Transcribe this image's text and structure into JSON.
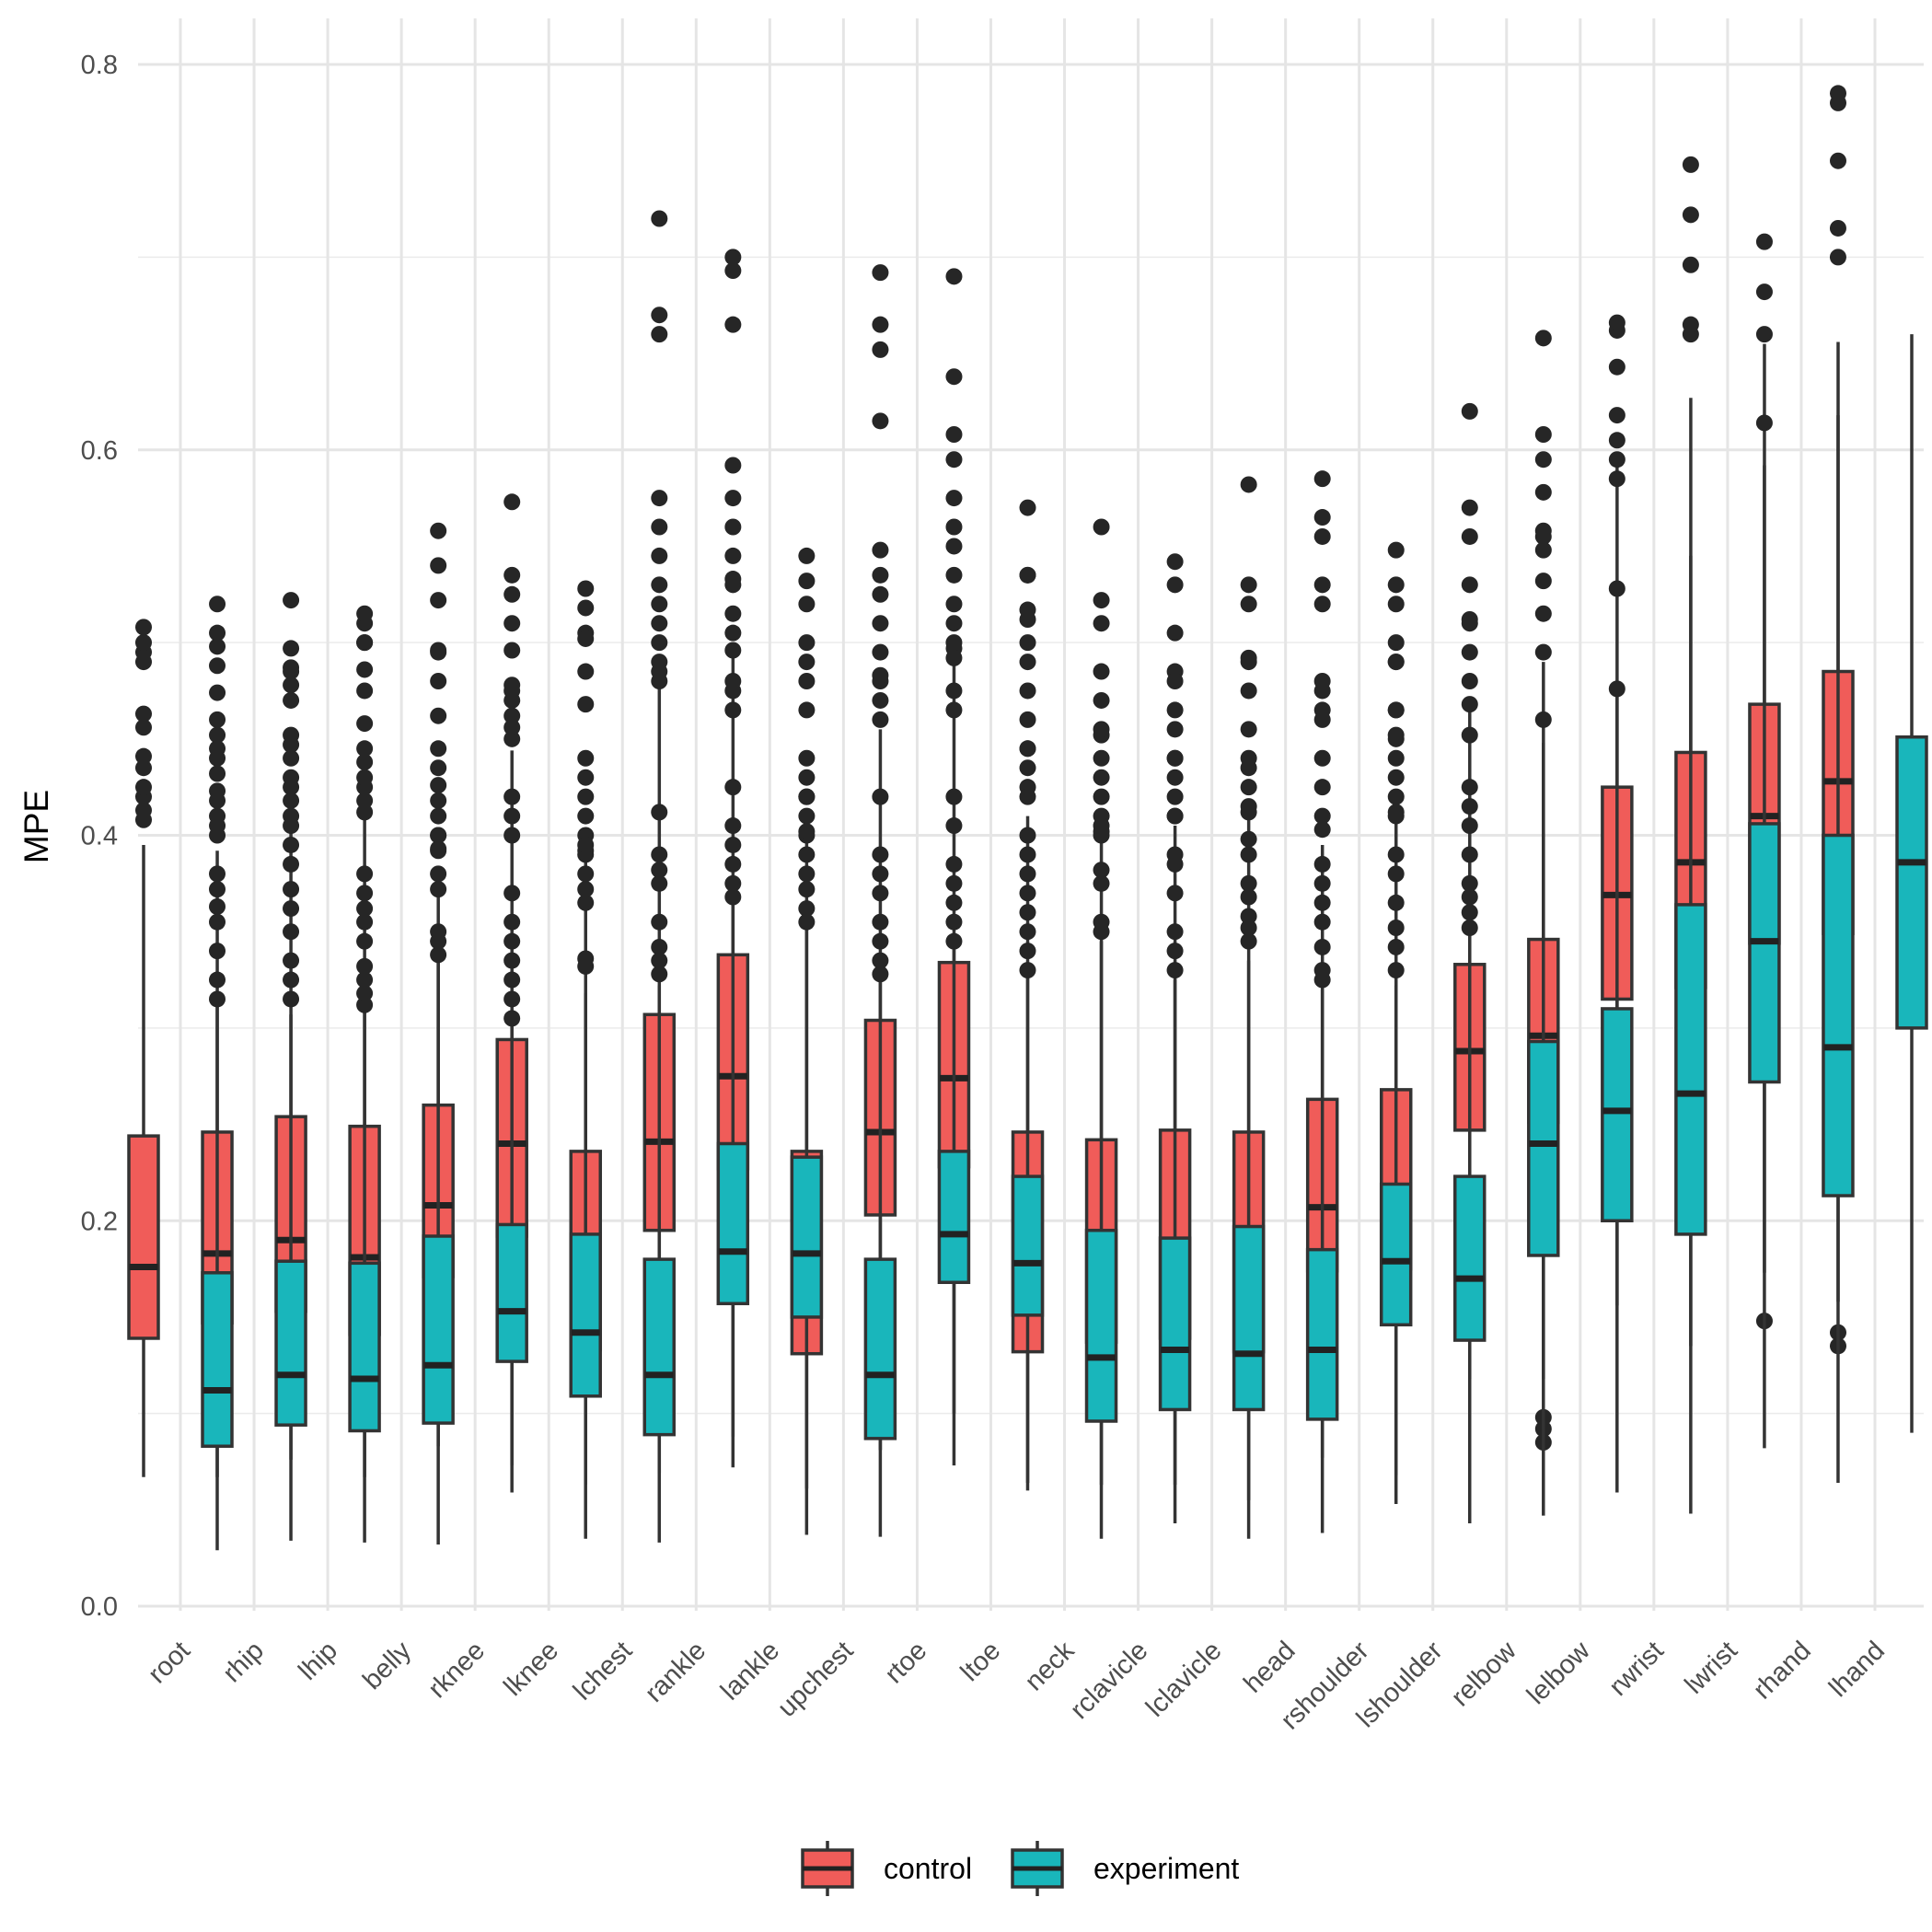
{
  "chart_data": {
    "type": "boxplot",
    "ylabel": "MPE",
    "xlabel": "",
    "ylim": [
      0,
      0.8
    ],
    "yticks": [
      "0.0",
      "0.2",
      "0.4",
      "0.6",
      "0.8"
    ],
    "grid": true,
    "legend_position": "bottom",
    "categories": [
      "root",
      "rhip",
      "lhip",
      "belly",
      "rknee",
      "lknee",
      "lchest",
      "rankle",
      "lankle",
      "upchest",
      "rtoe",
      "ltoe",
      "neck",
      "rclavicle",
      "lclavicle",
      "head",
      "rshoulder",
      "lshoulder",
      "relbow",
      "lelbow",
      "rwrist",
      "lwrist",
      "rhand",
      "lhand"
    ],
    "series": [
      {
        "name": "control",
        "color": "#F8766D",
        "boxes": [
          {
            "min": 0.067,
            "q1": 0.139,
            "median": 0.176,
            "q3": 0.244,
            "max": 0.395,
            "outliers": [
              0.408,
              0.413,
              0.42,
              0.425,
              0.435,
              0.441,
              0.456,
              0.463,
              0.49,
              0.495,
              0.5,
              0.508
            ]
          },
          {
            "min": 0.067,
            "q1": 0.147,
            "median": 0.183,
            "q3": 0.246,
            "max": 0.392,
            "outliers": [
              0.4,
              0.405,
              0.41,
              0.418,
              0.423,
              0.432,
              0.44,
              0.445,
              0.452,
              0.46,
              0.474,
              0.498,
              0.505,
              0.52
            ]
          },
          {
            "min": 0.076,
            "q1": 0.153,
            "median": 0.19,
            "q3": 0.254,
            "max": 0.402,
            "outliers": [
              0.405,
              0.41,
              0.418,
              0.425,
              0.43,
              0.44,
              0.447,
              0.452,
              0.47,
              0.478,
              0.485,
              0.497,
              0.522
            ]
          },
          {
            "min": 0.067,
            "q1": 0.141,
            "median": 0.181,
            "q3": 0.249,
            "max": 0.41,
            "outliers": [
              0.412,
              0.418,
              0.425,
              0.43,
              0.438,
              0.445,
              0.458,
              0.475,
              0.486,
              0.5,
              0.51,
              0.515
            ]
          },
          {
            "min": 0.083,
            "q1": 0.171,
            "median": 0.208,
            "q3": 0.26,
            "max": 0.384,
            "outliers": [
              0.393,
              0.4,
              0.41,
              0.418,
              0.426,
              0.435,
              0.445,
              0.462,
              0.48,
              0.495,
              0.522,
              0.54,
              0.558
            ]
          },
          {
            "min": 0.073,
            "q1": 0.192,
            "median": 0.24,
            "q3": 0.294,
            "max": 0.444,
            "outliers": [
              0.45,
              0.456,
              0.462,
              0.47,
              0.478,
              0.496,
              0.51,
              0.525,
              0.535,
              0.573
            ]
          },
          {
            "min": 0.063,
            "q1": 0.133,
            "median": 0.17,
            "q3": 0.236,
            "max": 0.389,
            "outliers": [
              0.392,
              0.4,
              0.41,
              0.42,
              0.43,
              0.44,
              0.468,
              0.485,
              0.505,
              0.518,
              0.528
            ]
          },
          {
            "min": 0.069,
            "q1": 0.195,
            "median": 0.241,
            "q3": 0.307,
            "max": 0.476,
            "outliers": [
              0.48,
              0.49,
              0.5,
              0.51,
              0.52,
              0.53,
              0.545,
              0.56,
              0.575,
              0.66,
              0.67,
              0.72
            ]
          },
          {
            "min": 0.088,
            "q1": 0.227,
            "median": 0.275,
            "q3": 0.338,
            "max": 0.5,
            "outliers": [
              0.505,
              0.515,
              0.53,
              0.545,
              0.56,
              0.575,
              0.592,
              0.665,
              0.693,
              0.7
            ]
          },
          {
            "min": 0.061,
            "q1": 0.131,
            "median": 0.167,
            "q3": 0.236,
            "max": 0.396,
            "outliers": [
              0.4,
              0.41,
              0.42,
              0.43,
              0.44,
              0.465,
              0.48,
              0.5,
              0.52,
              0.532
            ]
          },
          {
            "min": 0.081,
            "q1": 0.203,
            "median": 0.246,
            "q3": 0.304,
            "max": 0.455,
            "outliers": [
              0.46,
              0.47,
              0.48,
              0.495,
              0.51,
              0.525,
              0.535,
              0.548,
              0.615,
              0.652,
              0.665,
              0.692
            ]
          },
          {
            "min": 0.1,
            "q1": 0.228,
            "median": 0.274,
            "q3": 0.334,
            "max": 0.493,
            "outliers": [
              0.497,
              0.51,
              0.52,
              0.535,
              0.55,
              0.56,
              0.575,
              0.595,
              0.608,
              0.638,
              0.69
            ]
          },
          {
            "min": 0.064,
            "q1": 0.132,
            "median": 0.172,
            "q3": 0.246,
            "max": 0.41,
            "outliers": [
              0.425,
              0.435,
              0.445,
              0.46,
              0.475,
              0.49,
              0.5,
              0.512,
              0.535,
              0.57
            ]
          },
          {
            "min": 0.063,
            "q1": 0.137,
            "median": 0.174,
            "q3": 0.242,
            "max": 0.398,
            "outliers": [
              0.402,
              0.41,
              0.42,
              0.43,
              0.44,
              0.452,
              0.47,
              0.51,
              0.522,
              0.56
            ]
          },
          {
            "min": 0.063,
            "q1": 0.139,
            "median": 0.178,
            "q3": 0.247,
            "max": 0.405,
            "outliers": [
              0.41,
              0.42,
              0.43,
              0.44,
              0.455,
              0.465,
              0.485,
              0.505,
              0.53,
              0.542
            ]
          },
          {
            "min": 0.055,
            "q1": 0.132,
            "median": 0.176,
            "q3": 0.246,
            "max": 0.41,
            "outliers": [
              0.415,
              0.425,
              0.44,
              0.455,
              0.475,
              0.49,
              0.52,
              0.53,
              0.582
            ]
          },
          {
            "min": 0.077,
            "q1": 0.174,
            "median": 0.207,
            "q3": 0.263,
            "max": 0.395,
            "outliers": [
              0.403,
              0.41,
              0.425,
              0.44,
              0.46,
              0.465,
              0.52,
              0.53,
              0.555,
              0.565,
              0.585
            ]
          },
          {
            "min": 0.068,
            "q1": 0.175,
            "median": 0.21,
            "q3": 0.268,
            "max": 0.408,
            "outliers": [
              0.412,
              0.42,
              0.43,
              0.44,
              0.45,
              0.465,
              0.49,
              0.5,
              0.52,
              0.53,
              0.548
            ]
          },
          {
            "min": 0.118,
            "q1": 0.247,
            "median": 0.288,
            "q3": 0.333,
            "max": 0.468,
            "outliers": [
              0.468,
              0.48,
              0.495,
              0.51,
              0.53,
              0.555,
              0.57,
              0.62
            ]
          },
          {
            "min": 0.118,
            "q1": 0.251,
            "median": 0.296,
            "q3": 0.346,
            "max": 0.49,
            "outliers": [
              0.085,
              0.092,
              0.098,
              0.495,
              0.515,
              0.532,
              0.548,
              0.578,
              0.595,
              0.608,
              0.658
            ]
          },
          {
            "min": 0.156,
            "q1": 0.315,
            "median": 0.369,
            "q3": 0.425,
            "max": 0.592,
            "outliers": [
              0.595,
              0.605,
              0.618,
              0.643,
              0.662,
              0.666
            ]
          },
          {
            "min": 0.135,
            "q1": 0.321,
            "median": 0.386,
            "q3": 0.443,
            "max": 0.627,
            "outliers": [
              0.696,
              0.722,
              0.748
            ]
          },
          {
            "min": 0.173,
            "q1": 0.344,
            "median": 0.41,
            "q3": 0.468,
            "max": 0.655,
            "outliers": [
              0.148,
              0.66,
              0.682,
              0.708
            ]
          },
          {
            "min": 0.158,
            "q1": 0.349,
            "median": 0.428,
            "q3": 0.485,
            "max": 0.656,
            "outliers": [
              0.135,
              0.142,
              0.75,
              0.78,
              0.785
            ]
          }
        ]
      },
      {
        "name": "experiment",
        "color": "#00BFC4",
        "boxes": [
          {
            "min": 0.029,
            "q1": 0.083,
            "median": 0.112,
            "q3": 0.173,
            "max": 0.312,
            "outliers": [
              0.315,
              0.325,
              0.34,
              0.355,
              0.363,
              0.372,
              0.38,
              0.488
            ]
          },
          {
            "min": 0.034,
            "q1": 0.094,
            "median": 0.12,
            "q3": 0.179,
            "max": 0.307,
            "outliers": [
              0.315,
              0.325,
              0.335,
              0.35,
              0.362,
              0.372,
              0.385,
              0.395,
              0.487
            ]
          },
          {
            "min": 0.033,
            "q1": 0.091,
            "median": 0.118,
            "q3": 0.178,
            "max": 0.308,
            "outliers": [
              0.312,
              0.318,
              0.325,
              0.332,
              0.345,
              0.355,
              0.362,
              0.37,
              0.38,
              0.5
            ]
          },
          {
            "min": 0.032,
            "q1": 0.095,
            "median": 0.125,
            "q3": 0.192,
            "max": 0.335,
            "outliers": [
              0.338,
              0.345,
              0.35,
              0.372,
              0.38,
              0.392,
              0.4,
              0.496
            ]
          },
          {
            "min": 0.059,
            "q1": 0.127,
            "median": 0.153,
            "q3": 0.198,
            "max": 0.302,
            "outliers": [
              0.305,
              0.315,
              0.325,
              0.335,
              0.345,
              0.355,
              0.37,
              0.4,
              0.41,
              0.42,
              0.475
            ]
          },
          {
            "min": 0.035,
            "q1": 0.109,
            "median": 0.142,
            "q3": 0.193,
            "max": 0.318,
            "outliers": [
              0.332,
              0.336,
              0.365,
              0.372,
              0.38,
              0.39,
              0.395,
              0.502
            ]
          },
          {
            "min": 0.033,
            "q1": 0.089,
            "median": 0.12,
            "q3": 0.18,
            "max": 0.322,
            "outliers": [
              0.328,
              0.335,
              0.342,
              0.355,
              0.375,
              0.382,
              0.39,
              0.412,
              0.485
            ]
          },
          {
            "min": 0.072,
            "q1": 0.157,
            "median": 0.184,
            "q3": 0.24,
            "max": 0.365,
            "outliers": [
              0.368,
              0.375,
              0.385,
              0.395,
              0.405,
              0.425,
              0.465,
              0.475,
              0.48,
              0.496,
              0.533
            ]
          },
          {
            "min": 0.037,
            "q1": 0.15,
            "median": 0.183,
            "q3": 0.233,
            "max": 0.352,
            "outliers": [
              0.355,
              0.362,
              0.372,
              0.38,
              0.39,
              0.402,
              0.42,
              0.49,
              0.545
            ]
          },
          {
            "min": 0.036,
            "q1": 0.087,
            "median": 0.12,
            "q3": 0.18,
            "max": 0.325,
            "outliers": [
              0.328,
              0.335,
              0.345,
              0.355,
              0.37,
              0.38,
              0.39,
              0.42,
              0.483
            ]
          },
          {
            "min": 0.073,
            "q1": 0.168,
            "median": 0.193,
            "q3": 0.236,
            "max": 0.342,
            "outliers": [
              0.345,
              0.355,
              0.365,
              0.375,
              0.385,
              0.405,
              0.42,
              0.465,
              0.475,
              0.492,
              0.5
            ]
          },
          {
            "min": 0.06,
            "q1": 0.151,
            "median": 0.178,
            "q3": 0.223,
            "max": 0.328,
            "outliers": [
              0.33,
              0.34,
              0.35,
              0.36,
              0.37,
              0.38,
              0.39,
              0.4,
              0.42,
              0.445,
              0.517,
              0.535
            ]
          },
          {
            "min": 0.035,
            "q1": 0.096,
            "median": 0.129,
            "q3": 0.195,
            "max": 0.345,
            "outliers": [
              0.35,
              0.355,
              0.375,
              0.382,
              0.4,
              0.405,
              0.455,
              0.485
            ]
          },
          {
            "min": 0.043,
            "q1": 0.102,
            "median": 0.133,
            "q3": 0.191,
            "max": 0.325,
            "outliers": [
              0.33,
              0.34,
              0.35,
              0.37,
              0.385,
              0.39,
              0.41,
              0.44,
              0.48
            ]
          },
          {
            "min": 0.035,
            "q1": 0.102,
            "median": 0.131,
            "q3": 0.197,
            "max": 0.335,
            "outliers": [
              0.345,
              0.352,
              0.358,
              0.368,
              0.375,
              0.39,
              0.398,
              0.412,
              0.435,
              0.492
            ]
          },
          {
            "min": 0.038,
            "q1": 0.097,
            "median": 0.133,
            "q3": 0.185,
            "max": 0.32,
            "outliers": [
              0.325,
              0.33,
              0.342,
              0.355,
              0.365,
              0.375,
              0.385,
              0.475,
              0.48
            ]
          },
          {
            "min": 0.053,
            "q1": 0.146,
            "median": 0.179,
            "q3": 0.219,
            "max": 0.322,
            "outliers": [
              0.33,
              0.342,
              0.352,
              0.365,
              0.38,
              0.39,
              0.41,
              0.452,
              0.465,
              0.49
            ]
          },
          {
            "min": 0.043,
            "q1": 0.138,
            "median": 0.17,
            "q3": 0.223,
            "max": 0.348,
            "outliers": [
              0.352,
              0.36,
              0.368,
              0.375,
              0.39,
              0.405,
              0.415,
              0.425,
              0.452,
              0.512
            ]
          },
          {
            "min": 0.047,
            "q1": 0.182,
            "median": 0.24,
            "q3": 0.293,
            "max": 0.448,
            "outliers": [
              0.46,
              0.555,
              0.558
            ]
          },
          {
            "min": 0.059,
            "q1": 0.2,
            "median": 0.257,
            "q3": 0.31,
            "max": 0.472,
            "outliers": [
              0.476,
              0.528,
              0.585
            ]
          },
          {
            "min": 0.048,
            "q1": 0.193,
            "median": 0.266,
            "q3": 0.364,
            "max": 0.545,
            "outliers": [
              0.66,
              0.665
            ]
          },
          {
            "min": 0.082,
            "q1": 0.272,
            "median": 0.345,
            "q3": 0.406,
            "max": 0.592,
            "outliers": [
              0.614
            ]
          },
          {
            "min": 0.064,
            "q1": 0.213,
            "median": 0.29,
            "q3": 0.4,
            "max": 0.618,
            "outliers": [
              0.7,
              0.715
            ]
          },
          {
            "min": 0.09,
            "q1": 0.3,
            "median": 0.386,
            "q3": 0.451,
            "max": 0.66,
            "outliers": []
          }
        ]
      }
    ]
  }
}
